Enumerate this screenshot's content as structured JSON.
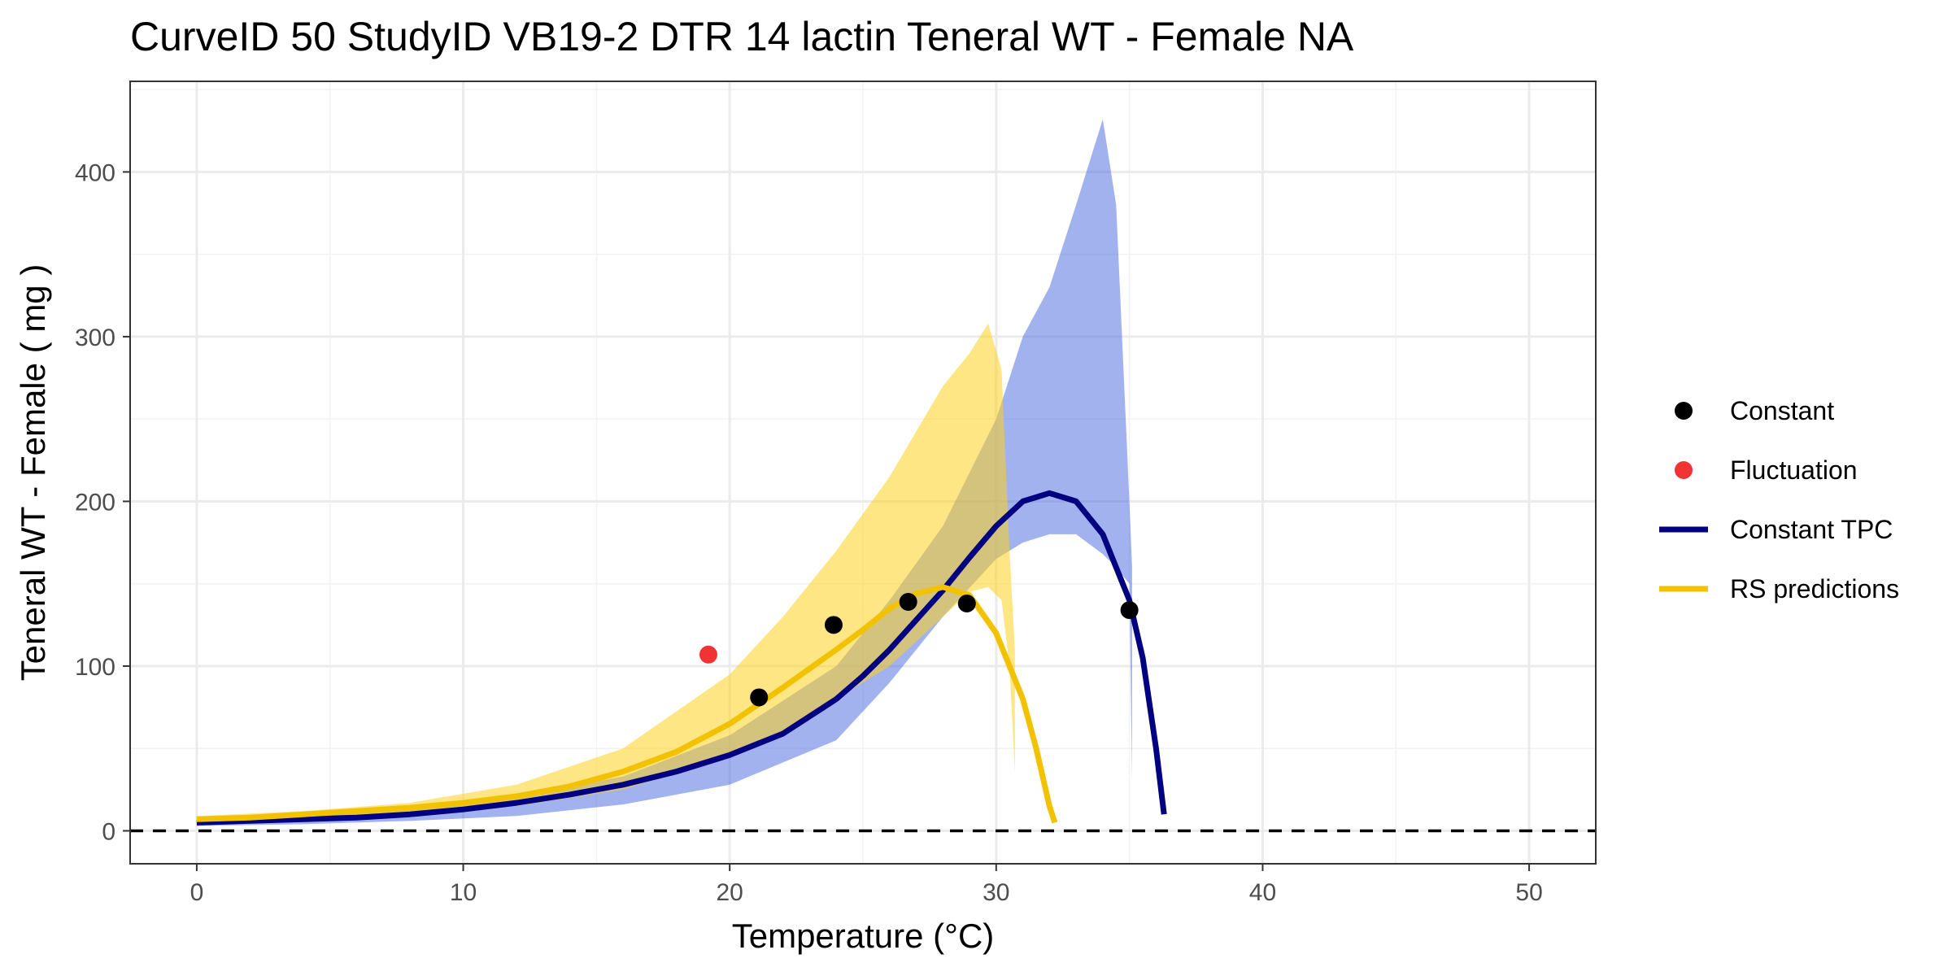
{
  "chart_data": {
    "type": "line",
    "title": "CurveID 50 StudyID VB19-2 DTR 14 lactin Teneral WT - Female NA",
    "xlabel": "Temperature (°C)",
    "ylabel": "Teneral WT - Female ( mg )",
    "xlim": [
      -2.5,
      52.5
    ],
    "ylim": [
      -20,
      455
    ],
    "x_ticks": [
      0,
      10,
      20,
      30,
      40,
      50
    ],
    "y_ticks": [
      0,
      100,
      200,
      300,
      400
    ],
    "grid": true,
    "legend_position": "right",
    "reference_line": {
      "y": 0,
      "style": "dashed",
      "color": "#000000"
    },
    "colors": {
      "constant_points": "#000000",
      "fluctuation_points": "#f23333",
      "constant_tpc": "#000080",
      "rs_predictions": "#f2c200",
      "constant_band": "#4466dd",
      "rs_band": "#ffd21f"
    },
    "points": [
      {
        "series": "Constant",
        "data": [
          [
            21.1,
            81
          ],
          [
            23.9,
            125
          ],
          [
            26.7,
            139
          ],
          [
            28.9,
            138
          ],
          [
            35.0,
            134
          ]
        ]
      },
      {
        "series": "Fluctuation",
        "data": [
          [
            19.2,
            107
          ]
        ]
      }
    ],
    "series": [
      {
        "name": "Constant TPC",
        "x": [
          0,
          2,
          4,
          6,
          8,
          10,
          12,
          14,
          16,
          18,
          20,
          22,
          24,
          25,
          26,
          27,
          28,
          29,
          30,
          31,
          32,
          33,
          34,
          35,
          35.5,
          36,
          36.3
        ],
        "y": [
          5,
          6,
          7,
          8,
          10,
          13,
          17,
          22,
          28,
          36,
          46,
          59,
          80,
          94,
          110,
          128,
          146,
          166,
          185,
          200,
          205,
          200,
          180,
          140,
          105,
          50,
          10
        ]
      },
      {
        "name": "RS predictions",
        "x": [
          0,
          2,
          4,
          6,
          8,
          10,
          12,
          14,
          16,
          18,
          20,
          22,
          24,
          25,
          26,
          27,
          28,
          29,
          30,
          31,
          31.5,
          32,
          32.2
        ],
        "y": [
          7,
          8,
          10,
          12,
          14,
          17,
          21,
          27,
          36,
          48,
          65,
          87,
          110,
          122,
          135,
          144,
          148,
          143,
          120,
          80,
          50,
          15,
          5
        ]
      }
    ],
    "bands": [
      {
        "name": "Constant TPC interval",
        "x": [
          0,
          4,
          8,
          12,
          16,
          20,
          24,
          26,
          28,
          30,
          31,
          32,
          33,
          34,
          34.5,
          35,
          35.1
        ],
        "lower": [
          3,
          4,
          6,
          9,
          16,
          28,
          55,
          90,
          130,
          165,
          175,
          180,
          180,
          168,
          160,
          150,
          30
        ],
        "upper": [
          7,
          9,
          13,
          21,
          33,
          58,
          100,
          140,
          185,
          250,
          300,
          330,
          380,
          432,
          380,
          200,
          160
        ]
      },
      {
        "name": "RS predictions interval",
        "x": [
          0,
          4,
          8,
          12,
          16,
          20,
          22,
          24,
          26,
          28,
          29,
          29.7,
          30.2,
          30.5,
          30.7
        ],
        "lower": [
          5,
          7,
          10,
          15,
          25,
          45,
          60,
          80,
          100,
          130,
          145,
          148,
          140,
          100,
          35
        ],
        "upper": [
          9,
          12,
          17,
          28,
          50,
          95,
          130,
          170,
          215,
          270,
          290,
          308,
          280,
          170,
          110
        ]
      }
    ],
    "legend": [
      {
        "label": "Constant",
        "kind": "point",
        "color": "#000000"
      },
      {
        "label": "Fluctuation",
        "kind": "point",
        "color": "#f23333"
      },
      {
        "label": "Constant TPC",
        "kind": "line",
        "color": "#000080"
      },
      {
        "label": "RS predictions",
        "kind": "line",
        "color": "#f2c200"
      }
    ]
  }
}
